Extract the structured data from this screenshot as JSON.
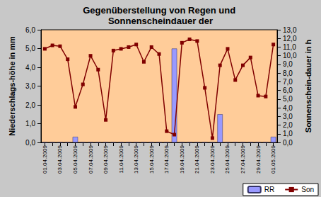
{
  "chart_data": {
    "type": "bar",
    "title": "Gegenüberstellung von Regen und Sonnenscheindauer der",
    "categories": [
      "01.04.2009",
      null,
      "03.04.2009",
      null,
      "05.04.2009",
      null,
      "07.04.2009",
      null,
      "09.04.2009",
      null,
      "11.04.2009",
      null,
      "13.04.2009",
      null,
      "15.04.2009",
      null,
      "17.04.2009",
      null,
      "19.04.2009",
      null,
      "21.04.2009",
      null,
      "23.04.2009",
      null,
      "25.04.2009",
      null,
      "27.04.2009",
      null,
      "29.04.2009",
      null,
      "01.05.2009"
    ],
    "series": [
      {
        "name": "RR",
        "type": "bar",
        "color": "#9999ff",
        "values": [
          0,
          0,
          0,
          0,
          0.3,
          0,
          0,
          0,
          0,
          0,
          0,
          0,
          0,
          0,
          0,
          0,
          0,
          5.0,
          0,
          0,
          0,
          0,
          0,
          1.5,
          0,
          0,
          0,
          0,
          0,
          0,
          0.3
        ]
      },
      {
        "name": "Son",
        "type": "line",
        "axis": "y2",
        "color": "#800000",
        "marker": "square",
        "values": [
          10.8,
          11.2,
          11.1,
          9.6,
          4.1,
          6.7,
          10.0,
          8.4,
          2.6,
          10.6,
          10.8,
          11.0,
          11.3,
          9.3,
          11.0,
          10.2,
          1.3,
          0.9,
          11.5,
          11.9,
          11.7,
          6.3,
          0.5,
          8.9,
          10.8,
          7.2,
          8.9,
          9.8,
          5.4,
          5.3,
          11.3
        ]
      }
    ],
    "ylabel": "Niederschlags-höhe in mm",
    "y2label": "Sonnenschein-dauer in h",
    "ylim": [
      0,
      6
    ],
    "yticks": [
      {
        "value": 0,
        "label": "0,0"
      },
      {
        "value": 1,
        "label": "1,0"
      },
      {
        "value": 2,
        "label": "2,0"
      },
      {
        "value": 3,
        "label": "3,0"
      },
      {
        "value": 4,
        "label": "4,0"
      },
      {
        "value": 5,
        "label": "5,0"
      },
      {
        "value": 6,
        "label": "6,0"
      }
    ],
    "y2lim": [
      0,
      13
    ],
    "y2ticks": [
      {
        "value": 0,
        "label": "0,0"
      },
      {
        "value": 1,
        "label": "1,0"
      },
      {
        "value": 2,
        "label": "2,0"
      },
      {
        "value": 3,
        "label": "3,0"
      },
      {
        "value": 4,
        "label": "4,0"
      },
      {
        "value": 5,
        "label": "5,0"
      },
      {
        "value": 6,
        "label": "6,0"
      },
      {
        "value": 7,
        "label": "7,0"
      },
      {
        "value": 8,
        "label": "8,0"
      },
      {
        "value": 9,
        "label": "9,0"
      },
      {
        "value": 10,
        "label": "10,0"
      },
      {
        "value": 11,
        "label": "11,0"
      },
      {
        "value": 12,
        "label": "12,0"
      },
      {
        "value": 13,
        "label": "13,0"
      }
    ],
    "grid": false,
    "legend": "lower right"
  }
}
